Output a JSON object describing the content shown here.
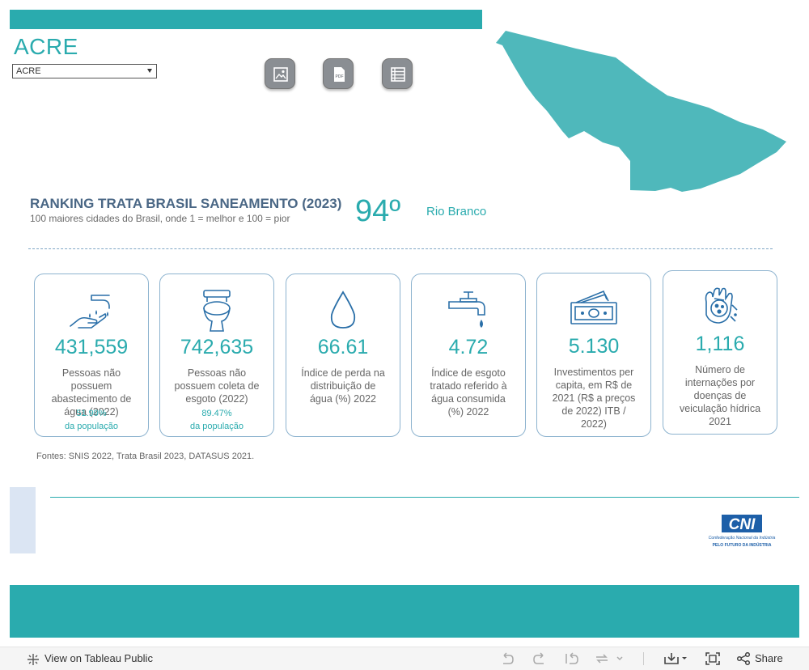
{
  "header": {
    "state_title": "ACRE",
    "state_select_value": "ACRE"
  },
  "download_buttons": [
    {
      "name": "image-download",
      "icon": "image-icon"
    },
    {
      "name": "pdf-download",
      "icon": "pdf-icon",
      "label": "PDF"
    },
    {
      "name": "data-download",
      "icon": "list-icon"
    }
  ],
  "ranking": {
    "title": "RANKING TRATA BRASIL SANEAMENTO (2023)",
    "subtitle": "100 maiores cidades do Brasil, onde 1 = melhor e 100 = pior",
    "value": "94º",
    "city": "Rio Branco"
  },
  "cards": [
    {
      "icon": "hand-washing-icon",
      "value": "431,559",
      "desc": "Pessoas não possuem abastecimento de água (2022)",
      "pct": "51.99%",
      "pct_label": "da população"
    },
    {
      "icon": "toilet-icon",
      "value": "742,635",
      "desc": "Pessoas não possuem coleta de esgoto (2022)",
      "pct": "89.47%",
      "pct_label": "da população"
    },
    {
      "icon": "water-drop-icon",
      "value": "66.61",
      "desc": "Índice de perda na distribuição de água (%) 2022"
    },
    {
      "icon": "faucet-icon",
      "value": "4.72",
      "desc": "Índice de esgoto tratado referido à água consumida (%) 2022"
    },
    {
      "icon": "money-icon",
      "value": "5.130",
      "desc": "Investimentos per capita, em R$ de 2021 (R$ a preços de 2022) ITB / 2022)"
    },
    {
      "icon": "germs-hand-icon",
      "value": "1,116",
      "desc": "Número de internações por doenças de veiculação hídrica 2021"
    }
  ],
  "sources": "Fontes: SNIS 2022, Trata Brasil 2023, DATASUS 2021.",
  "logo": {
    "text": "CNI",
    "line1": "Confederação Nacional da Indústria",
    "line2": "PELO FUTURO DA INDÚSTRIA"
  },
  "footer": {
    "view_label": "View on Tableau Public",
    "share_label": "Share"
  },
  "colors": {
    "teal": "#2aabae",
    "map": "#4fb8bb",
    "navy": "#4a6785",
    "cni_blue": "#1d5fa8"
  }
}
